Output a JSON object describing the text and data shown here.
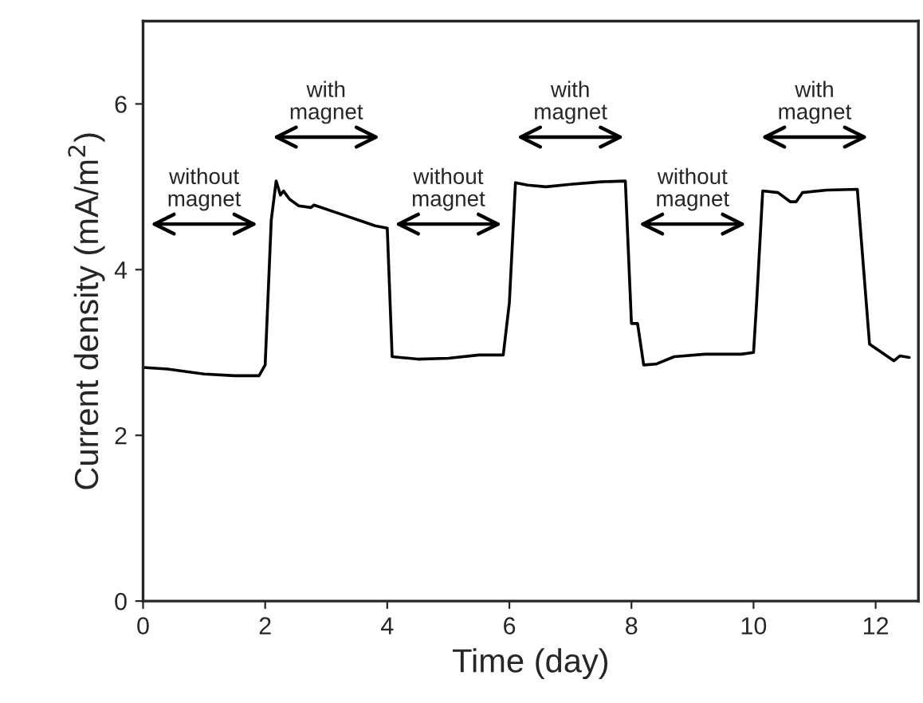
{
  "chart_data": {
    "type": "line",
    "xlabel": "Time (day)",
    "ylabel": "Current density (mA/m$^{2}$)",
    "xlim": [
      0,
      12.7
    ],
    "ylim": [
      0,
      7
    ],
    "xticks": [
      0,
      2,
      4,
      6,
      8,
      10,
      12
    ],
    "yticks": [
      0,
      2,
      4,
      6
    ],
    "grid": false,
    "legend": false,
    "marker": "none",
    "line_style": "solid",
    "series": [
      {
        "color": "#000000",
        "x": [
          0,
          0.4,
          1,
          1.5,
          1.9,
          2.0,
          2.1,
          2.18,
          2.25,
          2.3,
          2.4,
          2.55,
          2.75,
          2.8,
          3.2,
          3.6,
          3.8,
          4.0,
          4.08,
          4.5,
          5,
          5.5,
          5.9,
          6.0,
          6.1,
          6.3,
          6.6,
          7,
          7.5,
          7.9,
          8.0,
          8.1,
          8.2,
          8.4,
          8.7,
          9.2,
          9.8,
          10.0,
          10.05,
          10.15,
          10.4,
          10.6,
          10.7,
          10.8,
          11.2,
          11.7,
          11.75,
          11.9,
          12.2,
          12.3,
          12.4,
          12.55
        ],
        "values": [
          2.82,
          2.8,
          2.74,
          2.72,
          2.72,
          2.85,
          4.6,
          5.07,
          4.9,
          4.95,
          4.85,
          4.77,
          4.75,
          4.78,
          4.68,
          4.58,
          4.53,
          4.5,
          2.95,
          2.92,
          2.93,
          2.97,
          2.97,
          3.6,
          5.05,
          5.02,
          5.0,
          5.03,
          5.06,
          5.07,
          3.35,
          3.35,
          2.85,
          2.86,
          2.95,
          2.98,
          2.98,
          3.0,
          3.6,
          4.95,
          4.93,
          4.82,
          4.82,
          4.93,
          4.96,
          4.97,
          4.5,
          3.1,
          2.95,
          2.9,
          2.96,
          2.94
        ]
      }
    ],
    "annotations": [
      "without\nmagnet",
      "with\nmagnet",
      "without\nmagnet",
      "with\nmagnet",
      "without\nmagnet",
      "with\nmagnet"
    ]
  }
}
